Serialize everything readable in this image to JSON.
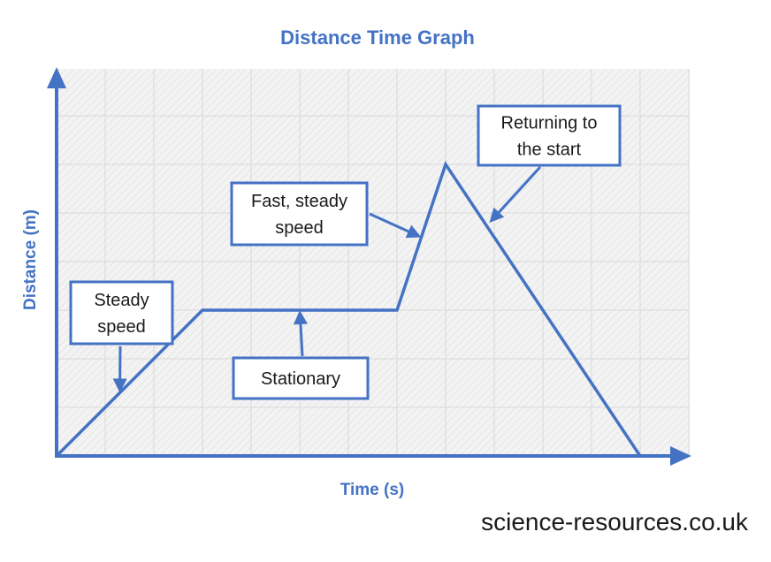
{
  "colors": {
    "accent": "#4472c4",
    "text": "#1a1a1a",
    "grid": "#d8d8d8",
    "plot_bg": "#f2f2f2"
  },
  "chart_data": {
    "type": "line",
    "title": "Distance Time Graph",
    "xlabel": "Time (s)",
    "ylabel": "Distance (m)",
    "grid": true,
    "xlim": [
      0,
      13
    ],
    "ylim": [
      0,
      8
    ],
    "series": [
      {
        "x": [
          0,
          3,
          7,
          8,
          12
        ],
        "y": [
          0,
          3,
          3,
          6,
          0
        ]
      }
    ],
    "annotations": [
      {
        "lines": [
          "Steady",
          "speed"
        ],
        "target": [
          1.3,
          1.3
        ]
      },
      {
        "lines": [
          "Stationary"
        ],
        "target": [
          5,
          3
        ]
      },
      {
        "lines": [
          "Fast, steady",
          "speed"
        ],
        "target": [
          7.5,
          4.5
        ]
      },
      {
        "lines": [
          "Returning to",
          "the start"
        ],
        "target": [
          8.9,
          4.8
        ]
      }
    ]
  },
  "footer": {
    "source": "science-resources.co.uk"
  }
}
